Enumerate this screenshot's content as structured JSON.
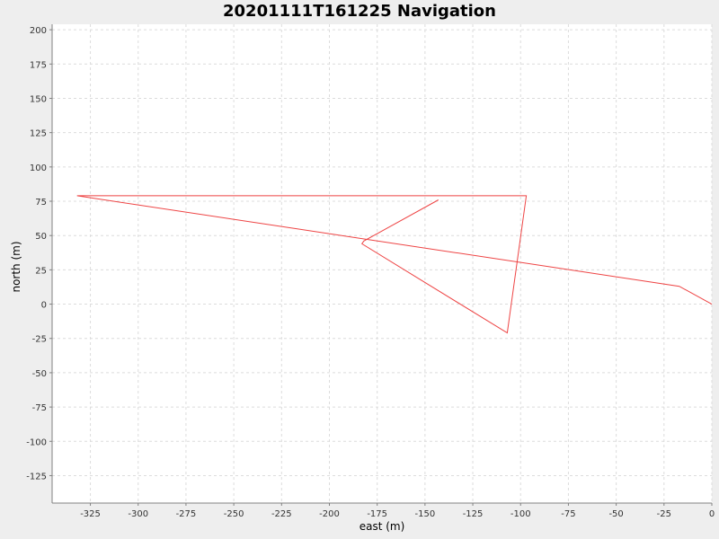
{
  "chart_data": {
    "type": "line",
    "title": "20201111T161225 Navigation",
    "xlabel": "east (m)",
    "ylabel": "north (m)",
    "xlim": [
      -345,
      0
    ],
    "ylim": [
      -145,
      204
    ],
    "xticks": [
      -325,
      -300,
      -275,
      -250,
      -225,
      -200,
      -175,
      -150,
      -125,
      -100,
      -75,
      -50,
      -25,
      0
    ],
    "yticks": [
      -125,
      -100,
      -75,
      -50,
      -25,
      0,
      25,
      50,
      75,
      100,
      125,
      150,
      175,
      200
    ],
    "grid": true,
    "legend": "none",
    "series": [
      {
        "color": "#ee4444",
        "x": [
          0,
          -17,
          -332,
          -97,
          -107,
          -183,
          -182,
          -143
        ],
        "y": [
          0,
          13,
          79,
          79,
          -21,
          44,
          46,
          76
        ]
      }
    ]
  }
}
